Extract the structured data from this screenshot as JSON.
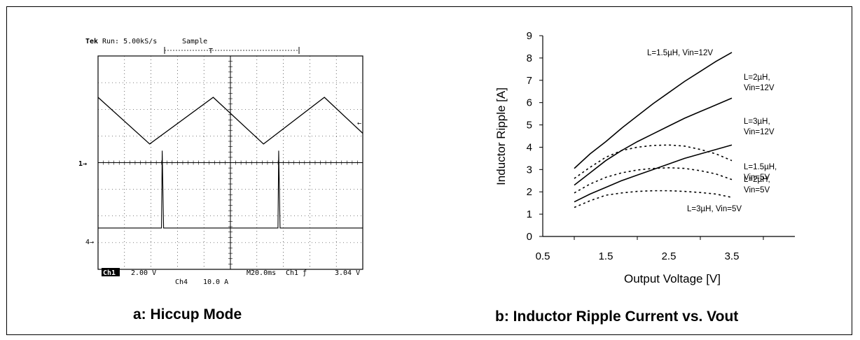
{
  "panel_a": {
    "caption": "a: Hiccup Mode",
    "header": {
      "brand": "Tek",
      "run": "Run: 5.00kS/s",
      "mode": "Sample",
      "trigger_mark": "T"
    },
    "markers": {
      "ch1": "1→",
      "ch4": "4→",
      "ch1_ref": "←"
    },
    "footer": {
      "ch1_tag": "Ch1",
      "ch1_scale": "2.00 V",
      "ch4": "Ch4",
      "ch4_scale": "10.0 A",
      "timebase": "M20.0ms",
      "trigger": "Ch1 ƒ",
      "trigger_level": "3.04 V"
    }
  },
  "panel_b": {
    "caption": "b: Inductor Ripple Current vs. Vout"
  },
  "chart_data": [
    {
      "type": "line",
      "title": "",
      "xlabel": "",
      "ylabel": "",
      "time_per_div_ms": 20,
      "grid": true,
      "series": [
        {
          "name": "",
          "x_div": [
            0,
            1.95,
            4.35,
            6.25,
            8.55,
            10
          ],
          "y_div": [
            2.45,
            0.7,
            2.45,
            0.7,
            2.45,
            1.1
          ]
        },
        {
          "name": "",
          "baseline_div": -2.45,
          "pulses_at_div": [
            2.45,
            6.85
          ],
          "pulse_height_div": 2.9
        }
      ]
    },
    {
      "type": "line",
      "title": "",
      "xlabel": "Output Voltage [V]",
      "ylabel": "Inductor Ripple [A]",
      "xlim": [
        0.5,
        4.5
      ],
      "ylim": [
        0,
        9
      ],
      "xticks": [
        0.5,
        1.5,
        2.5,
        3.5
      ],
      "yticks": [
        0,
        1,
        2,
        3,
        4,
        5,
        6,
        7,
        8,
        9
      ],
      "grid": false,
      "series": [
        {
          "name": "L=1.5µH, Vin=12V",
          "label_lines": [
            "L=1.5µH, Vin=12V"
          ],
          "style": "solid",
          "x": [
            1.0,
            1.25,
            1.5,
            1.75,
            2.0,
            2.25,
            2.5,
            2.75,
            3.0,
            3.25,
            3.5
          ],
          "y": [
            3.05,
            3.7,
            4.25,
            4.85,
            5.4,
            5.95,
            6.45,
            6.95,
            7.4,
            7.85,
            8.25
          ]
        },
        {
          "name": "L=2µH, Vin=12V",
          "label_lines": [
            "L=2µH,",
            "Vin=12V"
          ],
          "style": "solid",
          "x": [
            1.0,
            1.25,
            1.5,
            1.75,
            2.0,
            2.25,
            2.5,
            2.75,
            3.0,
            3.25,
            3.5
          ],
          "y": [
            2.3,
            2.85,
            3.4,
            3.85,
            4.25,
            4.6,
            4.95,
            5.3,
            5.6,
            5.9,
            6.2
          ]
        },
        {
          "name": "L=3µH, Vin=12V",
          "label_lines": [
            "L=3µH,",
            "Vin=12V"
          ],
          "style": "solid",
          "x": [
            1.0,
            1.25,
            1.5,
            1.75,
            2.0,
            2.25,
            2.5,
            2.75,
            3.0,
            3.25,
            3.5
          ],
          "y": [
            1.55,
            1.9,
            2.2,
            2.5,
            2.75,
            3.0,
            3.25,
            3.5,
            3.7,
            3.9,
            4.1
          ]
        },
        {
          "name": "L=1.5µH, Vin=5V",
          "label_lines": [
            "L=1.5µH,",
            "Vin=5V"
          ],
          "style": "dashed",
          "x": [
            1.0,
            1.25,
            1.5,
            1.75,
            2.0,
            2.25,
            2.5,
            2.75,
            3.0,
            3.25,
            3.5
          ],
          "y": [
            2.6,
            3.1,
            3.55,
            3.85,
            4.0,
            4.08,
            4.1,
            4.05,
            3.9,
            3.7,
            3.4
          ]
        },
        {
          "name": "L=2µH, Vin=5V",
          "label_lines": [
            "L=2µH,",
            "Vin=5V"
          ],
          "style": "dashed",
          "x": [
            1.0,
            1.25,
            1.5,
            1.75,
            2.0,
            2.25,
            2.5,
            2.75,
            3.0,
            3.25,
            3.5
          ],
          "y": [
            1.95,
            2.35,
            2.65,
            2.85,
            2.98,
            3.05,
            3.08,
            3.05,
            2.95,
            2.8,
            2.55
          ]
        },
        {
          "name": "L=3µH, Vin=5V",
          "label_lines": [
            "L=3µH, Vin=5V"
          ],
          "style": "dashed",
          "x": [
            1.0,
            1.25,
            1.5,
            1.75,
            2.0,
            2.25,
            2.5,
            2.75,
            3.0,
            3.25,
            3.5
          ],
          "y": [
            1.3,
            1.6,
            1.85,
            1.95,
            2.02,
            2.05,
            2.05,
            2.02,
            1.97,
            1.9,
            1.75
          ]
        }
      ]
    }
  ]
}
